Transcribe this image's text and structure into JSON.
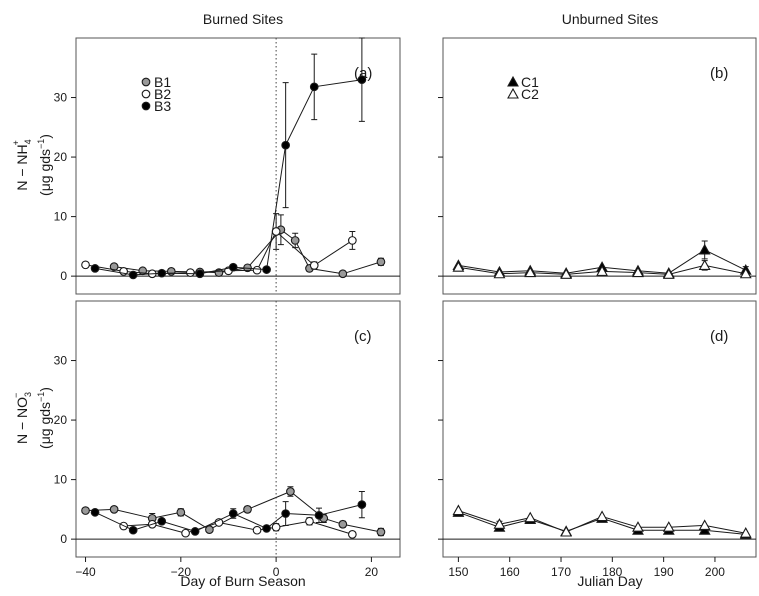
{
  "figure": {
    "col_titles": [
      "Burned Sites",
      "Unburned Sites"
    ],
    "xlabels": [
      "Day of Burn Season",
      "Julian Day"
    ],
    "row_ylabels": [
      {
        "species": "N − NH",
        "sub": "4",
        "sup": "+",
        "unit": "(μg gds",
        "unit_sup": "−1",
        "unit_close": ")"
      },
      {
        "species": "N − NO",
        "sub": "3",
        "sup": "−",
        "unit": "(μg gds",
        "unit_sup": "−1",
        "unit_close": ")"
      }
    ]
  },
  "chart_data": [
    {
      "type": "line",
      "panel_label": "(a)",
      "row": 0,
      "col": 0,
      "xlim": [
        -42,
        26
      ],
      "ylim": [
        -3,
        40
      ],
      "xticks": [
        -40,
        -20,
        0,
        20
      ],
      "yticks": [
        0,
        10,
        20,
        30
      ],
      "vline": 0,
      "legend": {
        "placement": "top-left",
        "entries": [
          {
            "label": "B1",
            "marker": "circle",
            "fill": "#999999"
          },
          {
            "label": "B2",
            "marker": "circle",
            "fill": "#ffffff"
          },
          {
            "label": "B3",
            "marker": "circle",
            "fill": "#000000"
          }
        ]
      },
      "series": [
        {
          "name": "B1",
          "marker": "circle",
          "fill": "#999999",
          "points": [
            [
              -34,
              1.6
            ],
            [
              -28,
              0.9
            ],
            [
              -22,
              0.8
            ],
            [
              -16,
              0.7
            ],
            [
              -12,
              0.6
            ],
            [
              -6,
              1.4
            ],
            [
              1,
              7.8
            ],
            [
              4,
              6.0
            ],
            [
              7,
              1.3
            ],
            [
              14,
              0.4
            ],
            [
              22,
              2.4
            ]
          ],
          "errors": [
            0.3,
            0.2,
            0.2,
            0.2,
            0.2,
            0.3,
            2.5,
            1.2,
            0.5,
            0.2,
            0.6
          ]
        },
        {
          "name": "B2",
          "marker": "circle",
          "fill": "#ffffff",
          "points": [
            [
              -40,
              1.9
            ],
            [
              -32,
              0.8
            ],
            [
              -26,
              0.4
            ],
            [
              -18,
              0.6
            ],
            [
              -10,
              0.9
            ],
            [
              -4,
              1.0
            ],
            [
              0,
              7.5
            ],
            [
              8,
              1.8
            ],
            [
              16,
              6.0
            ]
          ],
          "errors": [
            0.2,
            0.2,
            0.2,
            0.2,
            0.2,
            0.2,
            3.0,
            0.6,
            1.5
          ]
        },
        {
          "name": "B3",
          "marker": "circle",
          "fill": "#000000",
          "points": [
            [
              -38,
              1.3
            ],
            [
              -30,
              0.2
            ],
            [
              -24,
              0.5
            ],
            [
              -16,
              0.4
            ],
            [
              -9,
              1.5
            ],
            [
              -2,
              1.1
            ],
            [
              2,
              22.0
            ],
            [
              8,
              31.8
            ],
            [
              18,
              33.0
            ]
          ],
          "errors": [
            0.2,
            0.1,
            0.2,
            0.1,
            0.4,
            0.3,
            10.5,
            5.5,
            7.0
          ]
        }
      ]
    },
    {
      "type": "line",
      "panel_label": "(b)",
      "row": 0,
      "col": 1,
      "xlim": [
        147,
        208
      ],
      "ylim": [
        -3,
        40
      ],
      "xticks": [
        150,
        160,
        170,
        180,
        190,
        200
      ],
      "yticks": [
        0,
        10,
        20,
        30
      ],
      "legend": {
        "placement": "top-left",
        "entries": [
          {
            "label": "C1",
            "marker": "triangle",
            "fill": "#000000"
          },
          {
            "label": "C2",
            "marker": "triangle",
            "fill": "#ffffff"
          }
        ]
      },
      "series": [
        {
          "name": "C1",
          "marker": "triangle",
          "fill": "#000000",
          "points": [
            [
              150,
              1.8
            ],
            [
              158,
              0.7
            ],
            [
              164,
              0.9
            ],
            [
              171,
              0.5
            ],
            [
              178,
              1.5
            ],
            [
              185,
              0.9
            ],
            [
              191,
              0.5
            ],
            [
              198,
              4.4
            ],
            [
              206,
              1.0
            ]
          ],
          "errors": [
            0.3,
            0.2,
            0.2,
            0.2,
            0.3,
            0.2,
            0.2,
            1.5,
            0.6
          ]
        },
        {
          "name": "C2",
          "marker": "triangle",
          "fill": "#ffffff",
          "points": [
            [
              150,
              1.5
            ],
            [
              158,
              0.4
            ],
            [
              164,
              0.6
            ],
            [
              171,
              0.3
            ],
            [
              178,
              0.8
            ],
            [
              185,
              0.6
            ],
            [
              191,
              0.3
            ],
            [
              198,
              1.8
            ],
            [
              206,
              0.4
            ]
          ],
          "errors": [
            0.2,
            0.1,
            0.2,
            0.1,
            0.2,
            0.1,
            0.1,
            0.8,
            0.3
          ]
        }
      ]
    },
    {
      "type": "line",
      "panel_label": "(c)",
      "row": 1,
      "col": 0,
      "xlim": [
        -42,
        26
      ],
      "ylim": [
        -3,
        40
      ],
      "xticks": [
        -40,
        -20,
        0,
        20
      ],
      "yticks": [
        0,
        10,
        20,
        30
      ],
      "vline": 0,
      "series": [
        {
          "name": "B1",
          "marker": "circle",
          "fill": "#999999",
          "points": [
            [
              -40,
              4.8
            ],
            [
              -34,
              5.0
            ],
            [
              -26,
              3.5
            ],
            [
              -20,
              4.5
            ],
            [
              -14,
              1.6
            ],
            [
              -6,
              5.0
            ],
            [
              3,
              8.0
            ],
            [
              10,
              3.5
            ],
            [
              14,
              2.5
            ],
            [
              22,
              1.2
            ]
          ],
          "errors": [
            0.4,
            0.4,
            0.8,
            0.6,
            0.4,
            0.5,
            0.8,
            0.7,
            0.5,
            0.6
          ]
        },
        {
          "name": "B2",
          "marker": "circle",
          "fill": "#ffffff",
          "points": [
            [
              -32,
              2.2
            ],
            [
              -26,
              2.5
            ],
            [
              -19,
              1.0
            ],
            [
              -12,
              2.8
            ],
            [
              -4,
              1.5
            ],
            [
              0,
              2.0
            ],
            [
              7,
              3.0
            ],
            [
              16,
              0.8
            ]
          ],
          "errors": [
            0.3,
            0.4,
            0.3,
            0.4,
            0.3,
            0.6,
            0.6,
            0.3
          ]
        },
        {
          "name": "B3",
          "marker": "circle",
          "fill": "#000000",
          "points": [
            [
              -38,
              4.5
            ],
            [
              -30,
              1.5
            ],
            [
              -24,
              3.0
            ],
            [
              -17,
              1.3
            ],
            [
              -9,
              4.3
            ],
            [
              -2,
              1.8
            ],
            [
              2,
              4.3
            ],
            [
              9,
              4.0
            ],
            [
              18,
              5.8
            ]
          ],
          "errors": [
            0.4,
            0.3,
            0.3,
            0.3,
            0.8,
            0.3,
            2.0,
            1.2,
            2.2
          ]
        }
      ]
    },
    {
      "type": "line",
      "panel_label": "(d)",
      "row": 1,
      "col": 1,
      "xlim": [
        147,
        208
      ],
      "ylim": [
        -3,
        40
      ],
      "xticks": [
        150,
        160,
        170,
        180,
        190,
        200
      ],
      "yticks": [
        0,
        10,
        20,
        30
      ],
      "series": [
        {
          "name": "C1",
          "marker": "triangle",
          "fill": "#000000",
          "points": [
            [
              150,
              4.5
            ],
            [
              158,
              2.0
            ],
            [
              164,
              3.3
            ],
            [
              171,
              1.3
            ],
            [
              178,
              3.5
            ],
            [
              185,
              1.5
            ],
            [
              191,
              1.5
            ],
            [
              198,
              1.5
            ],
            [
              206,
              0.8
            ]
          ],
          "errors": [
            0.4,
            0.5,
            0.4,
            0.3,
            0.4,
            0.3,
            0.3,
            0.4,
            0.3
          ]
        },
        {
          "name": "C2",
          "marker": "triangle",
          "fill": "#ffffff",
          "points": [
            [
              150,
              4.8
            ],
            [
              158,
              2.5
            ],
            [
              164,
              3.6
            ],
            [
              171,
              1.2
            ],
            [
              178,
              3.8
            ],
            [
              185,
              2.0
            ],
            [
              191,
              2.0
            ],
            [
              198,
              2.3
            ],
            [
              206,
              1.0
            ]
          ],
          "errors": [
            0.4,
            0.5,
            0.4,
            0.3,
            0.4,
            0.3,
            0.3,
            0.4,
            0.3
          ]
        }
      ]
    }
  ]
}
